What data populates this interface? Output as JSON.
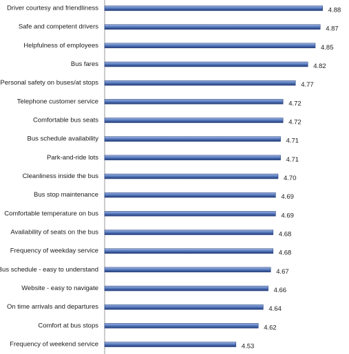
{
  "chart_data": {
    "type": "bar",
    "orientation": "horizontal",
    "categories": [
      "Driver courtesy and friendliness",
      "Safe and competent drivers",
      "Helpfulness of employees",
      "Bus fares",
      "Personal safety on buses/at stops",
      "Telephone customer service",
      "Comfortable bus seats",
      "Bus schedule availability",
      "Park-and-ride lots",
      "Cleanliness inside the bus",
      "Bus stop maintenance",
      "Comfortable temperature on bus",
      "Availability of seats on the bus",
      "Frequency of weekday service",
      "Bus schedule - easy to understand",
      "Website - easy to navigate",
      "On time arrivals and departures",
      "Comfort at bus stops",
      "Frequency of weekend service"
    ],
    "values": [
      4.88,
      4.87,
      4.85,
      4.82,
      4.77,
      4.72,
      4.72,
      4.71,
      4.71,
      4.7,
      4.69,
      4.69,
      4.68,
      4.68,
      4.67,
      4.66,
      4.64,
      4.62,
      4.53
    ],
    "value_labels": [
      "4.88",
      "4.87",
      "4.85",
      "4.82",
      "4.77",
      "4.72",
      "4.72",
      "4.71",
      "4.71",
      "4.70",
      "4.69",
      "4.69",
      "4.68",
      "4.68",
      "4.67",
      "4.66",
      "4.64",
      "4.62",
      "4.53"
    ],
    "color": "#4f6fb0",
    "xlim": [
      4,
      5
    ]
  }
}
